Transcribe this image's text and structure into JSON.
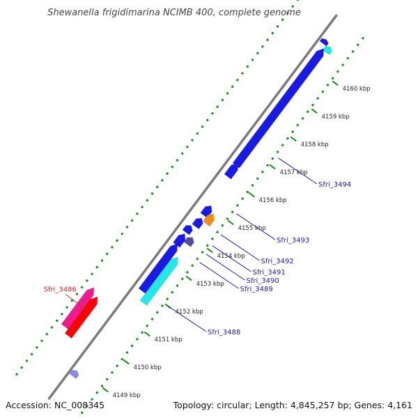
{
  "title": "Shewanella frigidimarina NCIMB 400, complete genome",
  "footer": {
    "accession": "Accession: NC_008345",
    "summary": "Topology: circular; Length: 4,845,257 bp; Genes: 4,161"
  },
  "colors": {
    "backbone": "#7a7a7a",
    "dotted_track": "#1a8a1a",
    "label_default": "#1a1aa0",
    "label_highlight": "#dd2222"
  },
  "ticks": [
    {
      "label": "4149 kbp",
      "kbp": 4149
    },
    {
      "label": "4150 kbp",
      "kbp": 4150
    },
    {
      "label": "4151 kbp",
      "kbp": 4151
    },
    {
      "label": "4152 kbp",
      "kbp": 4152
    },
    {
      "label": "4153 kbp",
      "kbp": 4153
    },
    {
      "label": "4154 kbp",
      "kbp": 4154
    },
    {
      "label": "4155 kbp",
      "kbp": 4155
    },
    {
      "label": "4156 kbp",
      "kbp": 4156
    },
    {
      "label": "4157 kbp",
      "kbp": 4157
    },
    {
      "label": "4158 kbp",
      "kbp": 4158
    },
    {
      "label": "4159 kbp",
      "kbp": 4159
    },
    {
      "label": "4160 kbp",
      "kbp": 4160
    }
  ],
  "features": [
    {
      "id": "f-blue-small-top",
      "kbp_start": 4160.7,
      "kbp_end": 4160.85,
      "color": "#1a1ae6"
    },
    {
      "id": "f-cyan-top",
      "kbp_start": 4160.55,
      "kbp_end": 4160.75,
      "color": "#22e8e8"
    },
    {
      "id": "f-blue-long-1",
      "kbp_start": 4159.2,
      "kbp_end": 4160.6,
      "color": "#1a1ae6"
    },
    {
      "id": "f-blue-long-2",
      "kbp_start": 4156.4,
      "kbp_end": 4159.4,
      "color": "#1a1ae6"
    },
    {
      "id": "f-blue-3494",
      "kbp_start": 4156.0,
      "kbp_end": 4156.5,
      "color": "#1a1ae6"
    },
    {
      "id": "f-blue-3493",
      "kbp_start": 4154.7,
      "kbp_end": 4155.05,
      "color": "#1a1ae6"
    },
    {
      "id": "f-orange-3492",
      "kbp_start": 4154.55,
      "kbp_end": 4154.9,
      "color": "#f08c1a"
    },
    {
      "id": "f-blue-3491",
      "kbp_start": 4154.3,
      "kbp_end": 4154.6,
      "color": "#1a1ae6"
    },
    {
      "id": "f-blue-3490",
      "kbp_start": 4154.0,
      "kbp_end": 4154.25,
      "color": "#1a1ae6"
    },
    {
      "id": "f-purple-3489",
      "kbp_start": 4153.75,
      "kbp_end": 4154.0,
      "color": "#505096"
    },
    {
      "id": "f-blue-3488",
      "kbp_start": 4153.55,
      "kbp_end": 4153.95,
      "color": "#1a1ae6"
    },
    {
      "id": "f-blue-long-3",
      "kbp_start": 4151.9,
      "kbp_end": 4153.6,
      "color": "#1a1ae6"
    },
    {
      "id": "f-cyan-3488",
      "kbp_start": 4151.65,
      "kbp_end": 4153.3,
      "color": "#22e8e8"
    },
    {
      "id": "f-pink-3486",
      "kbp_start": 4149.75,
      "kbp_end": 4151.15,
      "color": "#ee1b8c"
    },
    {
      "id": "f-red-3486",
      "kbp_start": 4149.6,
      "kbp_end": 4151.0,
      "color": "#ff0000"
    },
    {
      "id": "f-lightblue-bottom",
      "kbp_start": 4148.75,
      "kbp_end": 4148.95,
      "color": "#8a8af0"
    }
  ],
  "gene_labels": [
    {
      "text": "Sfri_3494",
      "kbp": 4157.3,
      "side": "right",
      "color": "#1a1aa0"
    },
    {
      "text": "Sfri_3493",
      "kbp": 4155.3,
      "side": "right",
      "color": "#1a1aa0"
    },
    {
      "text": "Sfri_3492",
      "kbp": 4154.55,
      "side": "right",
      "color": "#1a1aa0"
    },
    {
      "text": "Sfri_3491",
      "kbp": 4154.15,
      "side": "right",
      "color": "#1a1aa0"
    },
    {
      "text": "Sfri_3490",
      "kbp": 4153.85,
      "side": "right",
      "color": "#1a1aa0"
    },
    {
      "text": "Sfri_3489",
      "kbp": 4153.55,
      "side": "right",
      "color": "#1a1aa0"
    },
    {
      "text": "Sfri_3488",
      "kbp": 4152.0,
      "side": "right",
      "color": "#1a1aa0"
    },
    {
      "text": "Sfri_3486",
      "kbp": 4150.5,
      "side": "left",
      "color": "#dd2222"
    }
  ]
}
